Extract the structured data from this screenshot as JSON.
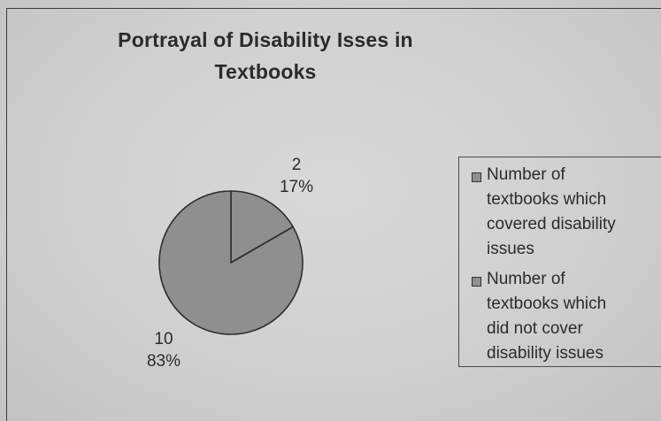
{
  "chart_data": {
    "type": "pie",
    "title_lines": [
      "Portrayal of Disability Isses in",
      "Textbooks"
    ],
    "slices": [
      {
        "label": "Number of textbooks which covered disability issues",
        "legend_text": "Number of\ntextbooks which\ncovered disability\nissues",
        "value": 2,
        "value_label": "2",
        "percent_label": "17%",
        "color": "#8e8f8e"
      },
      {
        "label": "Number of textbooks which did not cover disability issues",
        "legend_text": "Number of\ntextbooks which\ndid not cover\ndisability issues",
        "value": 10,
        "value_label": "10",
        "percent_label": "83%",
        "color": "#8e8f8e"
      }
    ],
    "legend_position": "right",
    "slice_outline_color": "#2f2f2f"
  }
}
